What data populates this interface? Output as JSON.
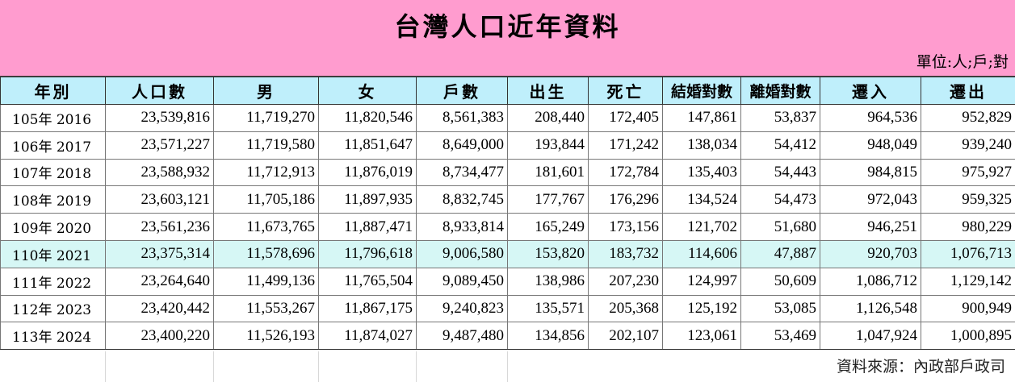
{
  "title": "台灣人口近年資料",
  "unit_note": "單位:人;戶;對",
  "source_note": "資料來源：內政部戶政司",
  "columns": [
    "年別",
    "人口數",
    "男",
    "女",
    "戶數",
    "出生",
    "死亡",
    "結婚對數",
    "離婚對數",
    "遷入",
    "遷出"
  ],
  "rows": [
    [
      "105年 2016",
      "23,539,816",
      "11,719,270",
      "11,820,546",
      "8,561,383",
      "208,440",
      "172,405",
      "147,861",
      "53,837",
      "964,536",
      "952,829"
    ],
    [
      "106年 2017",
      "23,571,227",
      "11,719,580",
      "11,851,647",
      "8,649,000",
      "193,844",
      "171,242",
      "138,034",
      "54,412",
      "948,049",
      "939,240"
    ],
    [
      "107年 2018",
      "23,588,932",
      "11,712,913",
      "11,876,019",
      "8,734,477",
      "181,601",
      "172,784",
      "135,403",
      "54,443",
      "984,815",
      "975,927"
    ],
    [
      "108年 2019",
      "23,603,121",
      "11,705,186",
      "11,897,935",
      "8,832,745",
      "177,767",
      "176,296",
      "134,524",
      "54,473",
      "972,043",
      "959,325"
    ],
    [
      "109年 2020",
      "23,561,236",
      "11,673,765",
      "11,887,471",
      "8,933,814",
      "165,249",
      "173,156",
      "121,702",
      "51,680",
      "946,251",
      "980,229"
    ],
    [
      "110年 2021",
      "23,375,314",
      "11,578,696",
      "11,796,618",
      "9,006,580",
      "153,820",
      "183,732",
      "114,606",
      "47,887",
      "920,703",
      "1,076,713"
    ],
    [
      "111年 2022",
      "23,264,640",
      "11,499,136",
      "11,765,504",
      "9,089,450",
      "138,986",
      "207,230",
      "124,997",
      "50,609",
      "1,086,712",
      "1,129,142"
    ],
    [
      "112年 2023",
      "23,420,442",
      "11,553,267",
      "11,867,175",
      "9,240,823",
      "135,571",
      "205,368",
      "125,192",
      "53,085",
      "1,126,548",
      "900,949"
    ],
    [
      "113年 2024",
      "23,400,220",
      "11,526,193",
      "11,874,027",
      "9,487,480",
      "134,856",
      "202,107",
      "123,061",
      "53,469",
      "1,047,924",
      "1,000,895"
    ]
  ],
  "highlight_row_label": "110年 2021",
  "colors": {
    "title_background": "#ff9ccf",
    "header_background": "#bfeffb",
    "highlight_row_background": "#d6f7f5"
  }
}
